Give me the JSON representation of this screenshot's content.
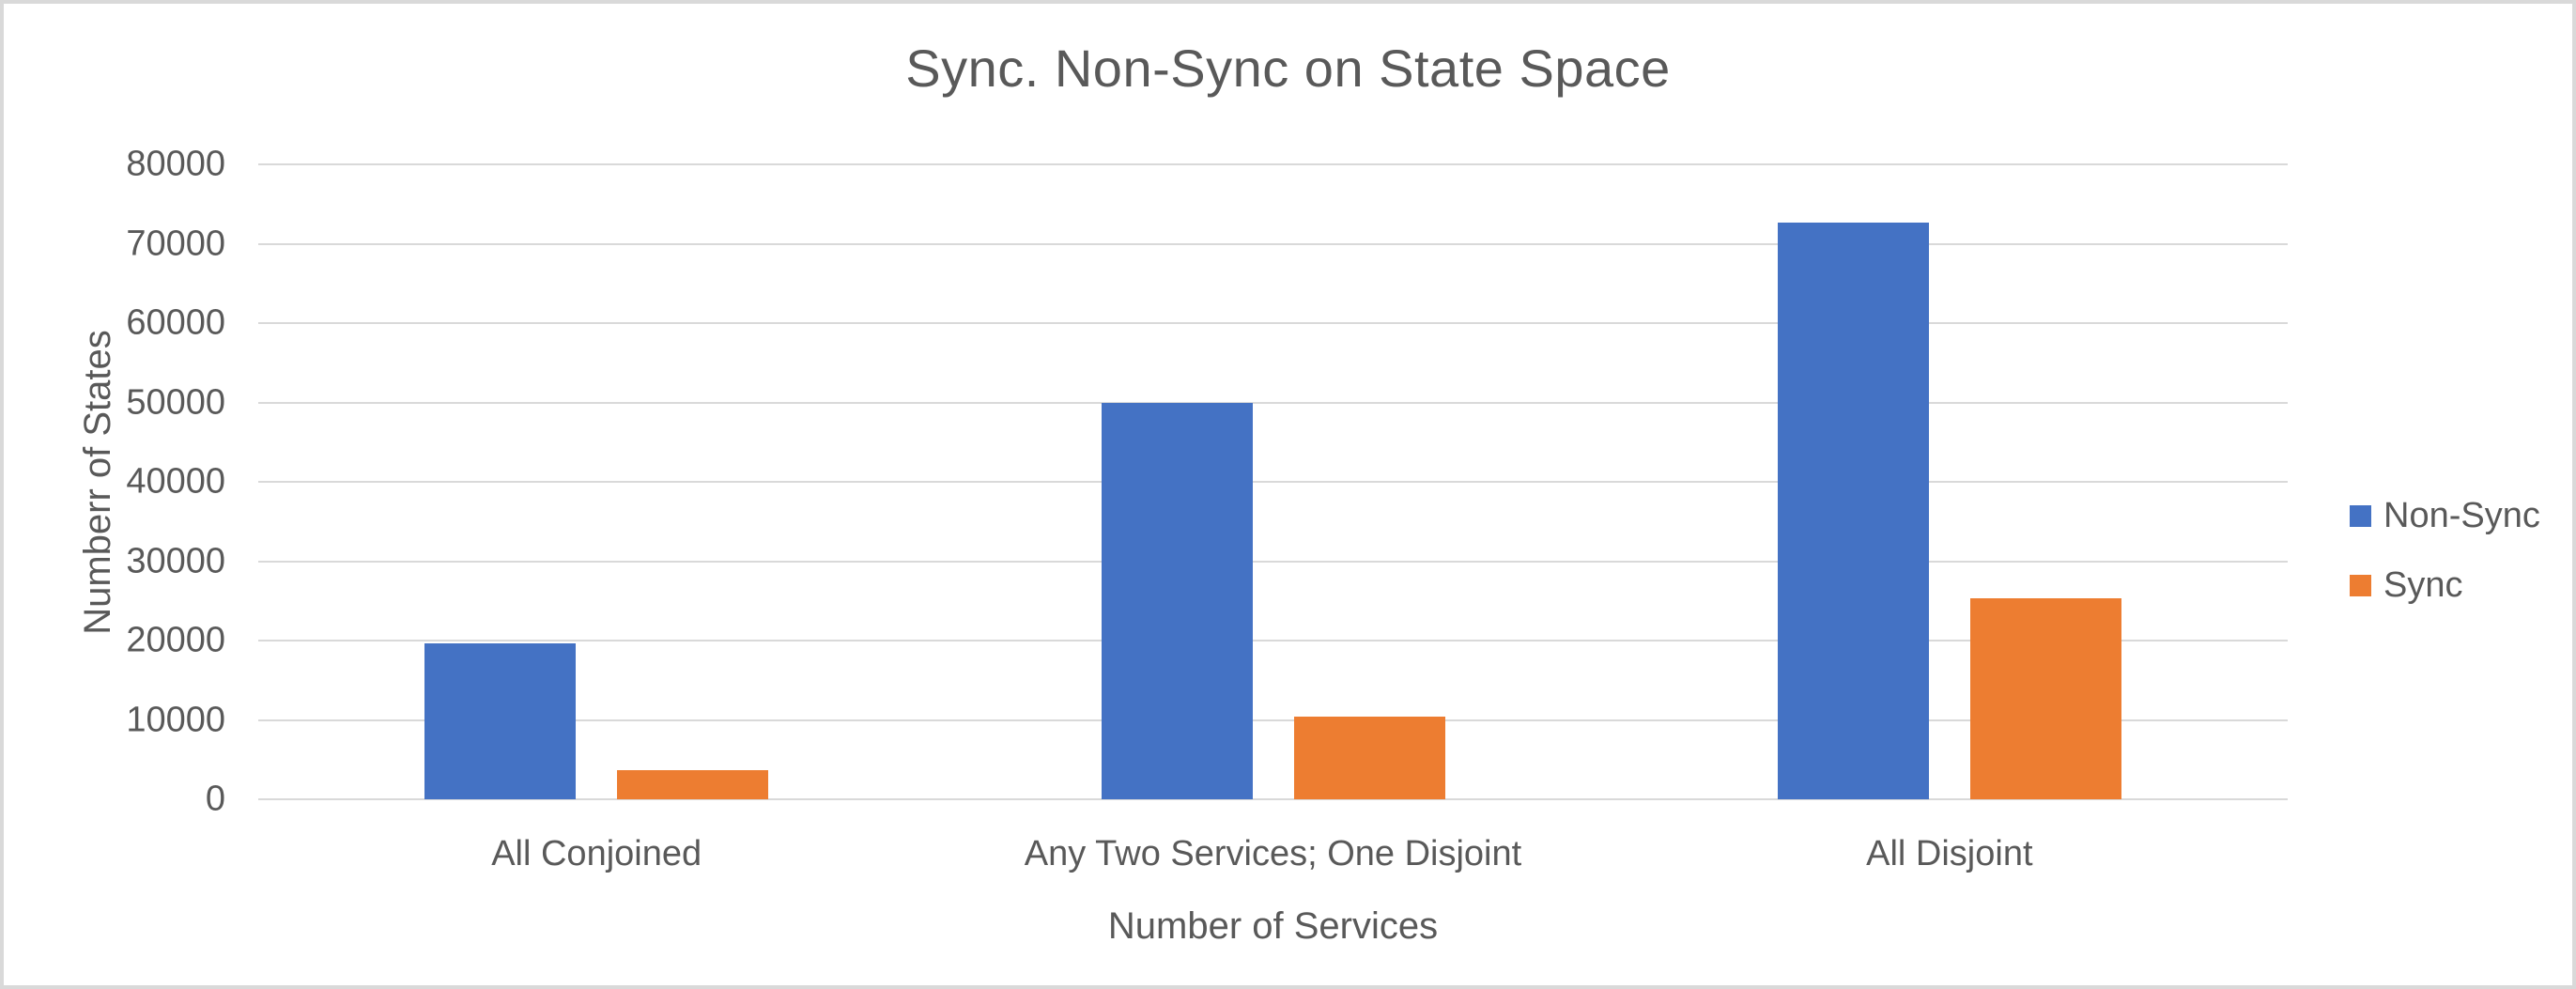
{
  "chart_data": {
    "type": "bar",
    "title": "Sync. Non-Sync on State Space",
    "xlabel": "Number of Services",
    "ylabel": "Numberr of States",
    "categories": [
      "All Conjoined",
      "Any Two Services; One Disjoint",
      "All Disjoint"
    ],
    "series": [
      {
        "name": "Non-Sync",
        "color": "#4472C4",
        "values": [
          19700,
          50000,
          72700
        ]
      },
      {
        "name": "Sync",
        "color": "#ED7D31",
        "values": [
          3700,
          10400,
          25300
        ]
      }
    ],
    "ylim": [
      0,
      80000
    ],
    "yticks": [
      0,
      10000,
      20000,
      30000,
      40000,
      50000,
      60000,
      70000,
      80000
    ],
    "grid": "horizontal",
    "legend_position": "right",
    "colors": {
      "text": "#595959",
      "gridline": "#D9D9D9",
      "background": "#FFFFFF",
      "canvas_border": "#D9D9D9"
    }
  }
}
